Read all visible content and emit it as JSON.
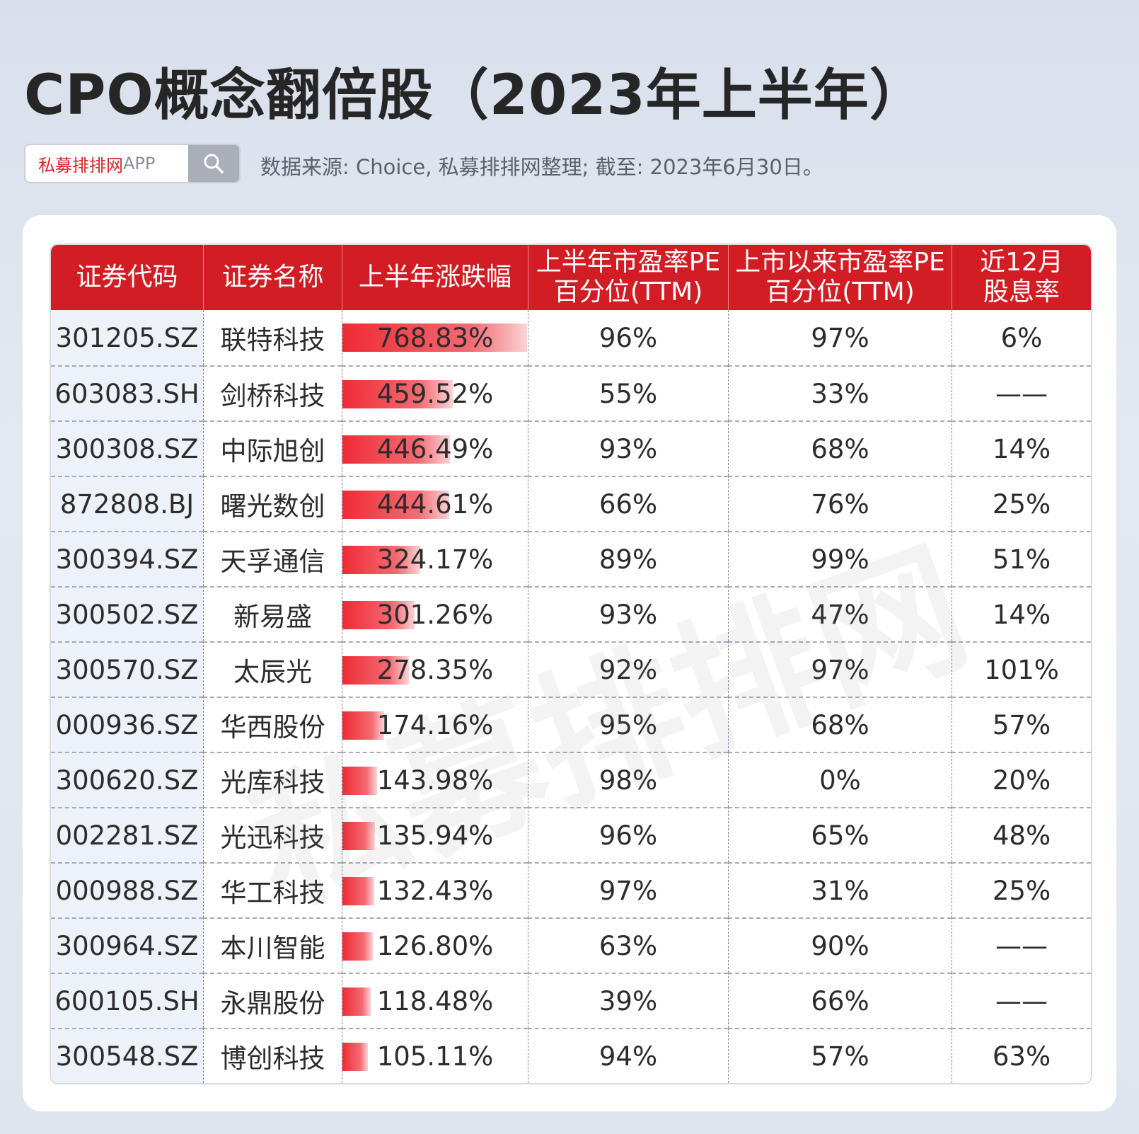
{
  "title": "CPO概念翻倍股（2023年上半年）",
  "search": {
    "brand": "私募排排网",
    "app": "APP",
    "icon": "search-icon"
  },
  "source": "数据来源: Choice, 私募排排网整理; 截至: 2023年6月30日。",
  "watermark": "私募排排网",
  "colors": {
    "header": "#d21d24",
    "bar": "#ee2b35",
    "brand": "#d6262b"
  },
  "table": {
    "headers": [
      {
        "line1": "证券代码",
        "line2": ""
      },
      {
        "line1": "证券名称",
        "line2": ""
      },
      {
        "line1": "上半年涨跌幅",
        "line2": ""
      },
      {
        "line1": "上半年市盈率PE",
        "line2": "百分位(TTM)"
      },
      {
        "line1": "上市以来市盈率PE",
        "line2": "百分位(TTM)"
      },
      {
        "line1": "近12月",
        "line2": "股息率"
      }
    ],
    "rows": [
      {
        "code": "301205.SZ",
        "name": "联特科技",
        "change": "768.83%",
        "change_value": 768.83,
        "pe_half": "96%",
        "pe_all": "97%",
        "dividend": "6%"
      },
      {
        "code": "603083.SH",
        "name": "剑桥科技",
        "change": "459.52%",
        "change_value": 459.52,
        "pe_half": "55%",
        "pe_all": "33%",
        "dividend": "——"
      },
      {
        "code": "300308.SZ",
        "name": "中际旭创",
        "change": "446.49%",
        "change_value": 446.49,
        "pe_half": "93%",
        "pe_all": "68%",
        "dividend": "14%"
      },
      {
        "code": "872808.BJ",
        "name": "曙光数创",
        "change": "444.61%",
        "change_value": 444.61,
        "pe_half": "66%",
        "pe_all": "76%",
        "dividend": "25%"
      },
      {
        "code": "300394.SZ",
        "name": "天孚通信",
        "change": "324.17%",
        "change_value": 324.17,
        "pe_half": "89%",
        "pe_all": "99%",
        "dividend": "51%"
      },
      {
        "code": "300502.SZ",
        "name": "新易盛",
        "change": "301.26%",
        "change_value": 301.26,
        "pe_half": "93%",
        "pe_all": "47%",
        "dividend": "14%"
      },
      {
        "code": "300570.SZ",
        "name": "太辰光",
        "change": "278.35%",
        "change_value": 278.35,
        "pe_half": "92%",
        "pe_all": "97%",
        "dividend": "101%"
      },
      {
        "code": "000936.SZ",
        "name": "华西股份",
        "change": "174.16%",
        "change_value": 174.16,
        "pe_half": "95%",
        "pe_all": "68%",
        "dividend": "57%"
      },
      {
        "code": "300620.SZ",
        "name": "光库科技",
        "change": "143.98%",
        "change_value": 143.98,
        "pe_half": "98%",
        "pe_all": "0%",
        "dividend": "20%"
      },
      {
        "code": "002281.SZ",
        "name": "光迅科技",
        "change": "135.94%",
        "change_value": 135.94,
        "pe_half": "96%",
        "pe_all": "65%",
        "dividend": "48%"
      },
      {
        "code": "000988.SZ",
        "name": "华工科技",
        "change": "132.43%",
        "change_value": 132.43,
        "pe_half": "97%",
        "pe_all": "31%",
        "dividend": "25%"
      },
      {
        "code": "300964.SZ",
        "name": "本川智能",
        "change": "126.80%",
        "change_value": 126.8,
        "pe_half": "63%",
        "pe_all": "90%",
        "dividend": "——"
      },
      {
        "code": "600105.SH",
        "name": "永鼎股份",
        "change": "118.48%",
        "change_value": 118.48,
        "pe_half": "39%",
        "pe_all": "66%",
        "dividend": "——"
      },
      {
        "code": "300548.SZ",
        "name": "博创科技",
        "change": "105.11%",
        "change_value": 105.11,
        "pe_half": "94%",
        "pe_all": "57%",
        "dividend": "63%"
      }
    ]
  }
}
